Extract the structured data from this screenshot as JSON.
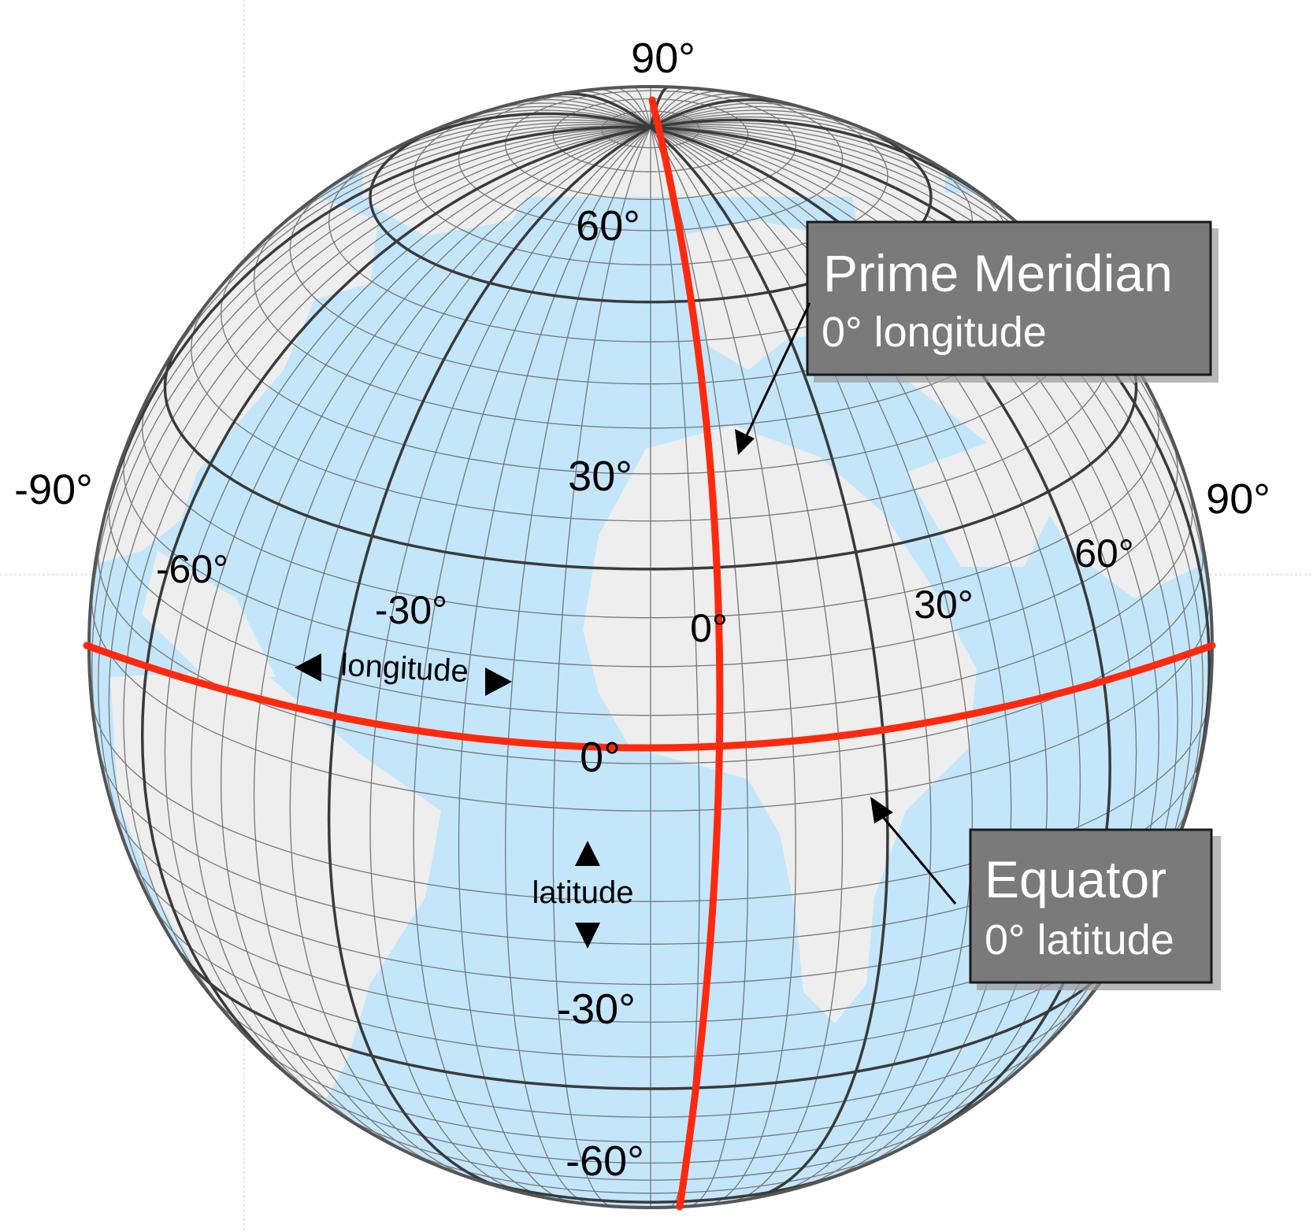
{
  "labels": {
    "north_pole": "90°",
    "west_edge": "-90°",
    "east_edge": "90°",
    "lat_60_n": "60°",
    "lat_30_n": "30°",
    "lat_0": "0°",
    "lat_30_s": "-30°",
    "lat_60_s": "-60°",
    "lon_minus_60": "-60°",
    "lon_minus_30": "-30°",
    "lon_0": "0°",
    "lon_30": "30°",
    "lon_60": "60°",
    "longitude_word": "longitude",
    "latitude_word": "latitude"
  },
  "callouts": {
    "prime_meridian": {
      "title": "Prime Meridian",
      "subtitle": "0° longitude"
    },
    "equator": {
      "title": "Equator",
      "subtitle": "0° latitude"
    }
  },
  "colors": {
    "ocean": "#c3e6fb",
    "land": "#eeeeee",
    "grid_minor": "#777777",
    "grid_major": "#3a3a3a",
    "highlight": "#ff2a0e",
    "callout_fill": "#7a7a7a",
    "callout_text": "#ffffff"
  }
}
